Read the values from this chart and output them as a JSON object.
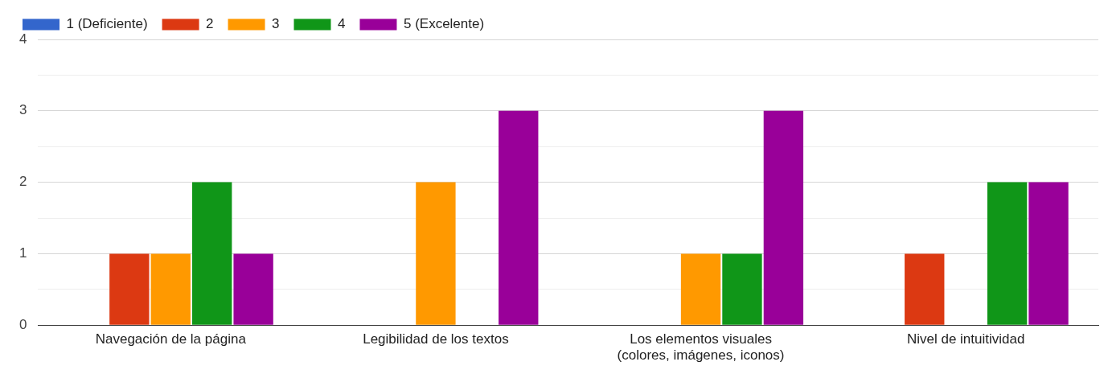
{
  "chart_data": {
    "type": "bar",
    "categories": [
      "Navegación de la página",
      "Legibilidad de los textos",
      "Los elementos visuales\n(colores, imágenes, iconos)",
      "Nivel de intuitividad"
    ],
    "series": [
      {
        "name": "1 (Deficiente)",
        "color": "#3366cc",
        "values": [
          0,
          0,
          0,
          0
        ]
      },
      {
        "name": "2",
        "color": "#dc3912",
        "values": [
          1,
          0,
          0,
          1
        ]
      },
      {
        "name": "3",
        "color": "#ff9900",
        "values": [
          1,
          2,
          1,
          0
        ]
      },
      {
        "name": "4",
        "color": "#109618",
        "values": [
          2,
          0,
          1,
          2
        ]
      },
      {
        "name": "5 (Excelente)",
        "color": "#990099",
        "values": [
          1,
          3,
          3,
          2
        ]
      }
    ],
    "ylim": [
      0,
      4
    ],
    "yticks": [
      0,
      {
        "value": 0.5,
        "label": null
      },
      1,
      {
        "value": 1.5,
        "label": null
      },
      2,
      {
        "value": 2.5,
        "label": null
      },
      3,
      {
        "value": 3.5,
        "label": null
      },
      4
    ],
    "grid": "y",
    "legend": "top left"
  }
}
